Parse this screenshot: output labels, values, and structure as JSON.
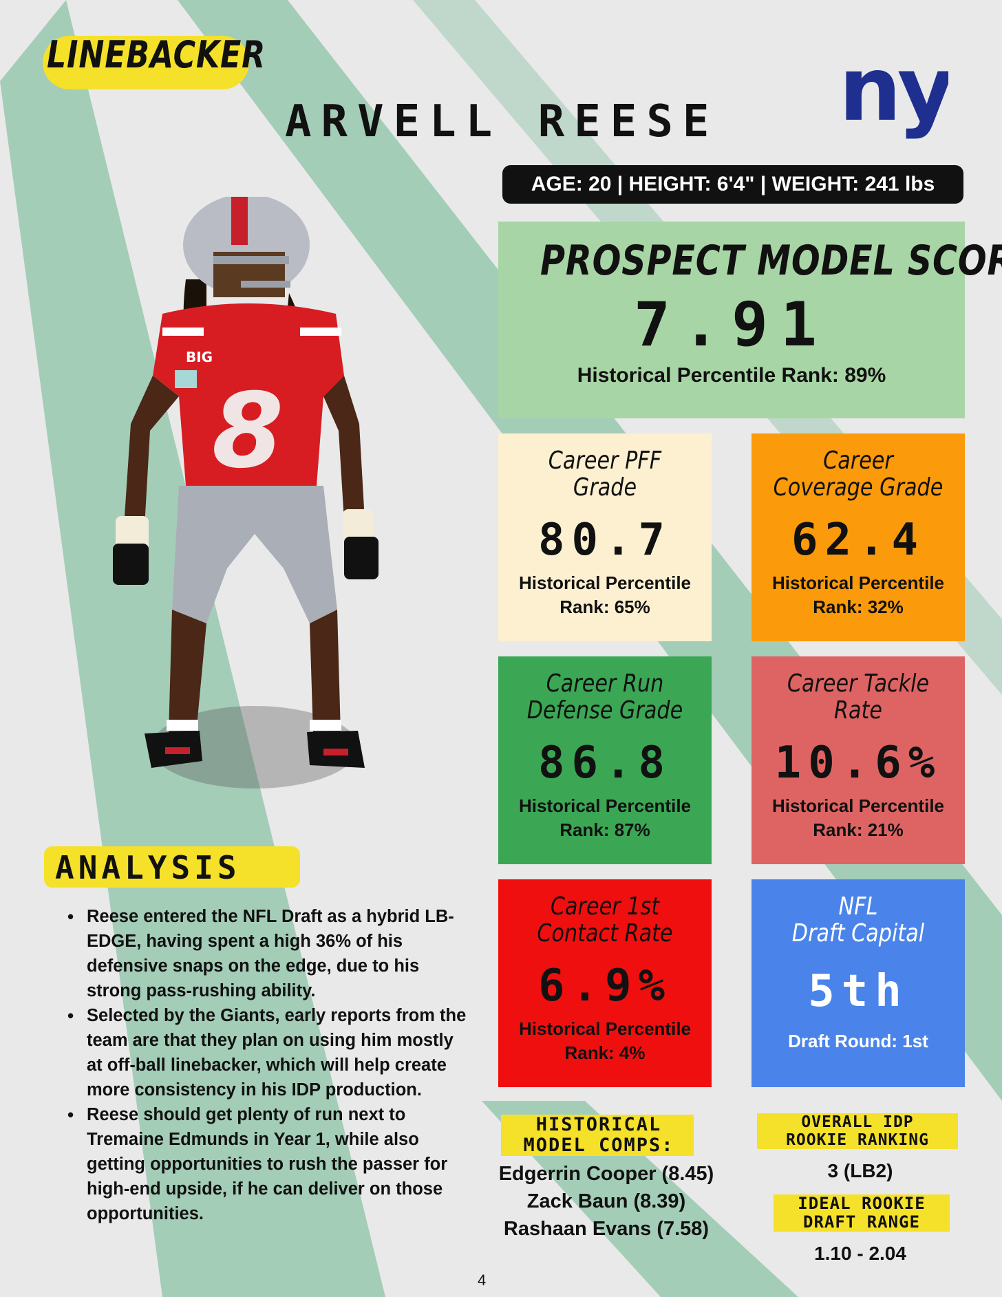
{
  "header": {
    "position": "LINEBACKER",
    "player_name": "ARVELL REESE",
    "bio": "AGE: 20 | HEIGHT: 6'4\" | WEIGHT: 241 lbs",
    "team_logo_text": "ny"
  },
  "colors": {
    "accent_yellow": "#f5e12a",
    "stripe_green": "#a4cdb8",
    "team_blue": "#1e2f8f"
  },
  "prospect_model": {
    "title": "PROSPECT MODEL SCORE",
    "value": "7.91",
    "subtitle": "Historical  Percentile Rank: 89%"
  },
  "cards": [
    {
      "title": "Career PFF Grade",
      "value": "80.7",
      "sub1": "Historical  Percentile",
      "sub2": "Rank: 65%"
    },
    {
      "title": "Career Coverage Grade",
      "value": "62.4",
      "sub1": "Historical  Percentile",
      "sub2": "Rank: 32%"
    },
    {
      "title1": "Career Run",
      "title2": "Defense Grade",
      "value": "86.8",
      "sub1": "Historical  Percentile",
      "sub2": "Rank: 87%"
    },
    {
      "title1": "Career Tackle",
      "title2": "Rate",
      "value": "10.6%",
      "sub1": "Historical  Percentile",
      "sub2": "Rank: 21%"
    },
    {
      "title1": "Career 1st",
      "title2": "Contact Rate",
      "value": "6.9%",
      "sub1": "Historical  Percentile",
      "sub2": "Rank: 4%"
    },
    {
      "title1": "NFL",
      "title2": "Draft Capital",
      "value": "5th",
      "sub1": "Draft Round: 1st"
    }
  ],
  "analysis": {
    "title": "ANALYSIS",
    "bullets": [
      "Reese entered the NFL Draft as a hybrid LB-EDGE, having spent a high 36% of his defensive snaps on the edge, due to his strong pass-rushing ability.",
      "Selected by the Giants, early reports from the team are that they plan on using him mostly at off-ball linebacker, which will help create more consistency in his IDP production.",
      "Reese should get plenty of run next to Tremaine Edmunds in Year 1, while also getting opportunities to rush the passer for high-end upside, if he can deliver on those opportunities."
    ]
  },
  "comps": {
    "label1": "HISTORICAL",
    "label2": "MODEL COMPS:",
    "items": [
      "Edgerrin Cooper (8.45)",
      "Zack Baun (8.39)",
      "Rashaan Evans (7.58)"
    ]
  },
  "ranking": {
    "label1": "OVERALL IDP",
    "label2": "ROOKIE RANKING",
    "value": "3 (LB2)"
  },
  "draft_range": {
    "label1": "IDEAL ROOKIE",
    "label2": "DRAFT RANGE",
    "value": "1.10 - 2.04"
  },
  "player_jersey_number": "8",
  "helmet_logo_text": "BIG",
  "page_number": "4"
}
